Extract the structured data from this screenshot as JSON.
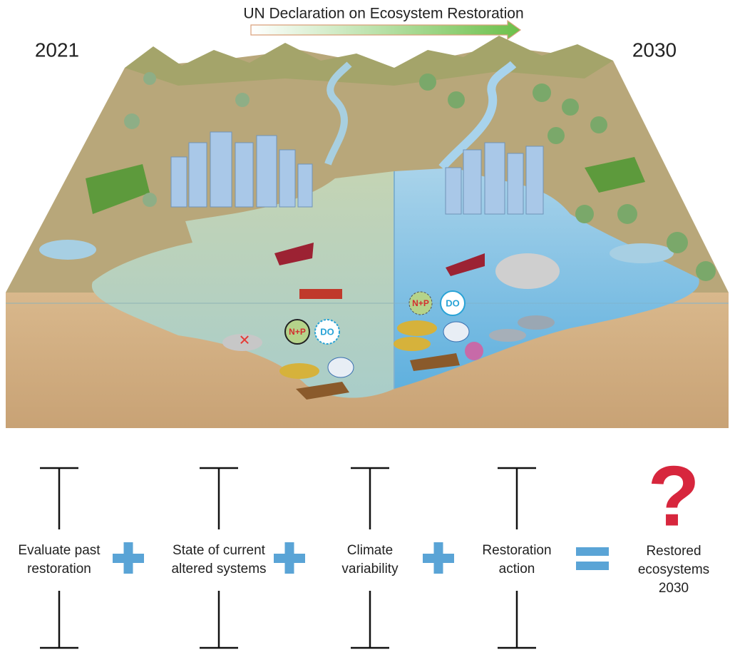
{
  "header": {
    "title": "UN Declaration on Ecosystem Restoration",
    "start_year": "2021",
    "end_year": "2030"
  },
  "illustration": {
    "left_labels": [
      "N+P",
      "DO"
    ],
    "right_labels": [
      "N+P",
      "DO"
    ]
  },
  "equation": {
    "terms": [
      {
        "lines": [
          "Evaluate past",
          "restoration"
        ]
      },
      {
        "lines": [
          "State of current",
          "altered systems"
        ]
      },
      {
        "lines": [
          "Climate",
          "variability"
        ]
      },
      {
        "lines": [
          "Restoration",
          "action"
        ]
      }
    ],
    "result": {
      "symbol": "?",
      "lines": [
        "Restored",
        "ecosystems",
        "2030"
      ]
    }
  }
}
